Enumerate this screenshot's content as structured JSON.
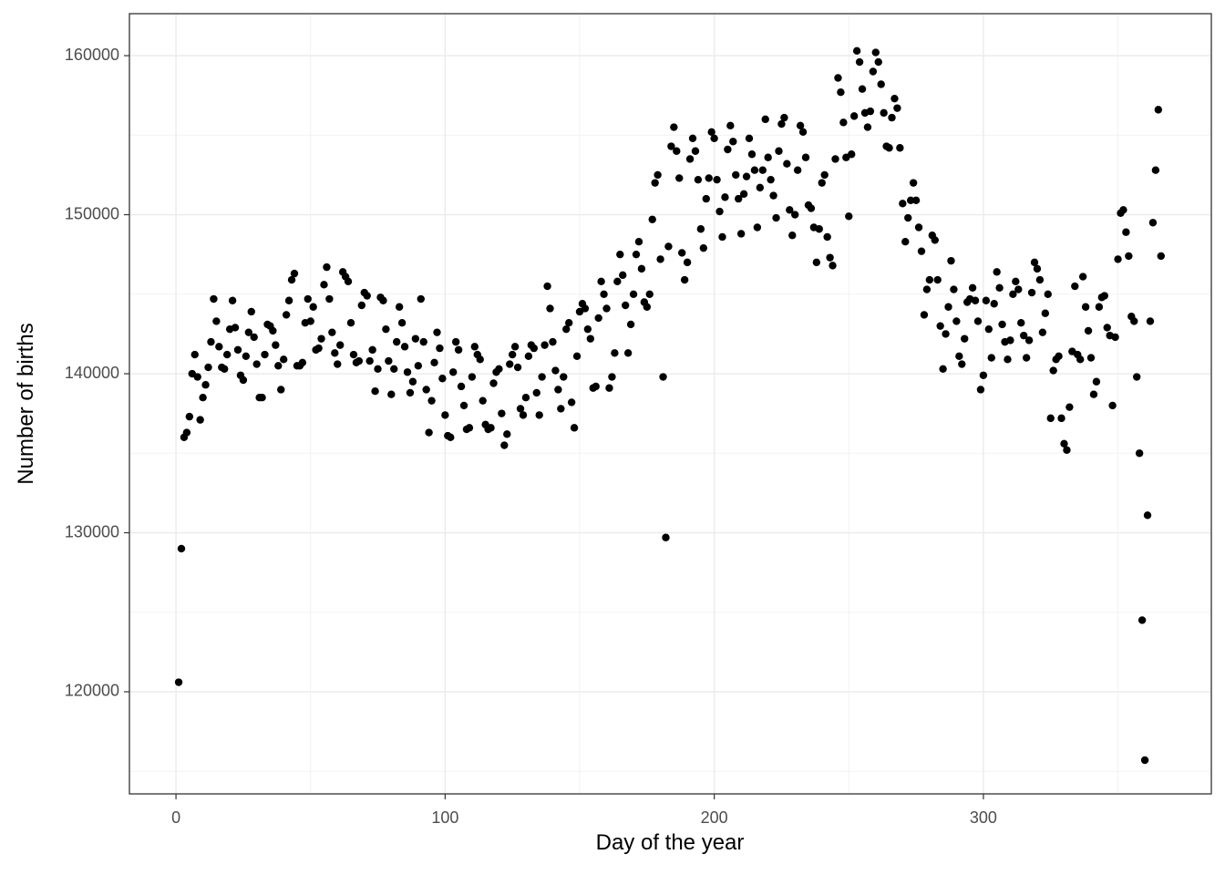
{
  "chart_data": {
    "type": "scatter",
    "xlabel": "Day of the year",
    "ylabel": "Number of births",
    "color": "#000000",
    "grid": true,
    "xlim": [
      -17.3,
      384.7
    ],
    "ylim": [
      113580,
      162640
    ],
    "xticks": [
      0,
      100,
      200,
      300
    ],
    "yticks": [
      120000,
      130000,
      140000,
      150000,
      160000
    ],
    "x": [
      1,
      2,
      3,
      4,
      5,
      6,
      7,
      8,
      9,
      10,
      11,
      12,
      13,
      14,
      15,
      16,
      17,
      18,
      19,
      20,
      21,
      22,
      23,
      24,
      25,
      26,
      27,
      28,
      29,
      30,
      31,
      32,
      33,
      34,
      35,
      36,
      37,
      38,
      39,
      40,
      41,
      42,
      43,
      44,
      45,
      46,
      47,
      48,
      49,
      50,
      51,
      52,
      53,
      54,
      55,
      56,
      57,
      58,
      59,
      60,
      61,
      62,
      63,
      64,
      65,
      66,
      67,
      68,
      69,
      70,
      71,
      72,
      73,
      74,
      75,
      76,
      77,
      78,
      79,
      80,
      81,
      82,
      83,
      84,
      85,
      86,
      87,
      88,
      89,
      90,
      91,
      92,
      93,
      94,
      95,
      96,
      97,
      98,
      99,
      100,
      101,
      102,
      103,
      104,
      105,
      106,
      107,
      108,
      109,
      110,
      111,
      112,
      113,
      114,
      115,
      116,
      117,
      118,
      119,
      120,
      121,
      122,
      123,
      124,
      125,
      126,
      127,
      128,
      129,
      130,
      131,
      132,
      133,
      134,
      135,
      136,
      137,
      138,
      139,
      140,
      141,
      142,
      143,
      144,
      145,
      146,
      147,
      148,
      149,
      150,
      151,
      152,
      153,
      154,
      155,
      156,
      157,
      158,
      159,
      160,
      161,
      162,
      163,
      164,
      165,
      166,
      167,
      168,
      169,
      170,
      171,
      172,
      173,
      174,
      175,
      176,
      177,
      178,
      179,
      180,
      181,
      182,
      183,
      184,
      185,
      186,
      187,
      188,
      189,
      190,
      191,
      192,
      193,
      194,
      195,
      196,
      197,
      198,
      199,
      200,
      201,
      202,
      203,
      204,
      205,
      206,
      207,
      208,
      209,
      210,
      211,
      212,
      213,
      214,
      215,
      216,
      217,
      218,
      219,
      220,
      221,
      222,
      223,
      224,
      225,
      226,
      227,
      228,
      229,
      230,
      231,
      232,
      233,
      234,
      235,
      236,
      237,
      238,
      239,
      240,
      241,
      242,
      243,
      244,
      245,
      246,
      247,
      248,
      249,
      250,
      251,
      252,
      253,
      254,
      255,
      256,
      257,
      258,
      259,
      260,
      261,
      262,
      263,
      264,
      265,
      266,
      267,
      268,
      269,
      270,
      271,
      272,
      273,
      274,
      275,
      276,
      277,
      278,
      279,
      280,
      281,
      282,
      283,
      284,
      285,
      286,
      287,
      288,
      289,
      290,
      291,
      292,
      293,
      294,
      295,
      296,
      297,
      298,
      299,
      300,
      301,
      302,
      303,
      304,
      305,
      306,
      307,
      308,
      309,
      310,
      311,
      312,
      313,
      314,
      315,
      316,
      317,
      318,
      319,
      320,
      321,
      322,
      323,
      324,
      325,
      326,
      327,
      328,
      329,
      330,
      331,
      332,
      333,
      334,
      335,
      336,
      337,
      338,
      339,
      340,
      341,
      342,
      343,
      344,
      345,
      346,
      347,
      348,
      349,
      350,
      351,
      352,
      353,
      354,
      355,
      356,
      357,
      358,
      359,
      360,
      361,
      362,
      363,
      364,
      365,
      366
    ],
    "values": [
      120600,
      129000,
      136000,
      136300,
      137300,
      140000,
      141200,
      139800,
      137100,
      138500,
      139300,
      140400,
      142000,
      144700,
      143300,
      141700,
      140400,
      140300,
      141200,
      142800,
      144600,
      142900,
      141500,
      139900,
      139600,
      141100,
      142600,
      143900,
      142300,
      140600,
      138500,
      138500,
      141200,
      143100,
      143000,
      142700,
      141800,
      140500,
      139000,
      140900,
      143700,
      144600,
      145900,
      146300,
      140500,
      140500,
      140700,
      143200,
      144700,
      143300,
      144200,
      141500,
      141600,
      142200,
      145600,
      146700,
      144700,
      142600,
      141300,
      140600,
      141800,
      146400,
      146100,
      145800,
      143200,
      141200,
      140700,
      140800,
      144300,
      145100,
      144900,
      140800,
      141500,
      138900,
      140300,
      144800,
      144600,
      142800,
      140800,
      138700,
      140300,
      142000,
      144200,
      143200,
      141700,
      140100,
      138800,
      139500,
      142200,
      140500,
      144700,
      142000,
      139000,
      136300,
      138300,
      140700,
      142600,
      141600,
      139700,
      137400,
      136100,
      136000,
      140100,
      142000,
      141500,
      139200,
      138000,
      136500,
      136600,
      139800,
      141700,
      141200,
      140900,
      138300,
      136800,
      136500,
      136600,
      139400,
      140100,
      140300,
      137500,
      135500,
      136200,
      140600,
      141200,
      141700,
      140400,
      137800,
      137400,
      138500,
      141100,
      141800,
      141600,
      138800,
      137400,
      139800,
      141800,
      145500,
      144100,
      142000,
      140200,
      139000,
      137800,
      139800,
      142800,
      143200,
      138200,
      136600,
      141100,
      143900,
      144400,
      144100,
      142800,
      142200,
      139100,
      139200,
      143500,
      145800,
      145000,
      144100,
      139100,
      139800,
      141300,
      145800,
      147500,
      146200,
      144300,
      141300,
      143100,
      145000,
      147500,
      148300,
      146600,
      144500,
      144200,
      145000,
      149700,
      152000,
      152500,
      147200,
      139800,
      129700,
      148000,
      154300,
      155500,
      154000,
      152300,
      147600,
      145900,
      147000,
      153500,
      154800,
      154000,
      152200,
      149100,
      147900,
      151000,
      152300,
      155200,
      154800,
      152200,
      150200,
      148600,
      151100,
      154100,
      155600,
      154600,
      152500,
      151000,
      148800,
      151300,
      152400,
      154800,
      153800,
      152800,
      149200,
      151700,
      152800,
      156000,
      153600,
      152200,
      151200,
      149800,
      154000,
      155700,
      156100,
      153200,
      150300,
      148700,
      150000,
      152800,
      155600,
      155200,
      153600,
      150600,
      150400,
      149200,
      147000,
      149100,
      152000,
      152500,
      148600,
      147300,
      146800,
      153500,
      158600,
      157700,
      155800,
      153600,
      149900,
      153800,
      156200,
      160300,
      159600,
      157900,
      156400,
      155500,
      156500,
      159000,
      160200,
      159600,
      158200,
      156400,
      154300,
      154200,
      156100,
      157300,
      156700,
      154200,
      150700,
      148300,
      149800,
      150900,
      152000,
      150900,
      149200,
      147700,
      143700,
      145300,
      145900,
      148700,
      148400,
      145900,
      143000,
      140300,
      142500,
      144200,
      147100,
      145300,
      143300,
      141100,
      140600,
      142200,
      144500,
      144700,
      145400,
      144600,
      143300,
      139000,
      139900,
      144600,
      142800,
      141000,
      144400,
      146400,
      145400,
      143100,
      142000,
      140900,
      142100,
      145000,
      145800,
      145300,
      143200,
      142400,
      141000,
      142100,
      145100,
      147000,
      146600,
      145900,
      142600,
      143800,
      145000,
      137200,
      140200,
      140900,
      141100,
      137200,
      135600,
      135200,
      137900,
      141400,
      145500,
      141200,
      140900,
      146100,
      144200,
      142700,
      141000,
      138700,
      139500,
      144200,
      144800,
      144900,
      142900,
      142400,
      138000,
      142300,
      147200,
      150100,
      150300,
      148900,
      147400,
      143600,
      143300,
      139800,
      135000,
      124500,
      115700,
      131100,
      143300,
      149500,
      152800,
      156600,
      147400
    ]
  }
}
